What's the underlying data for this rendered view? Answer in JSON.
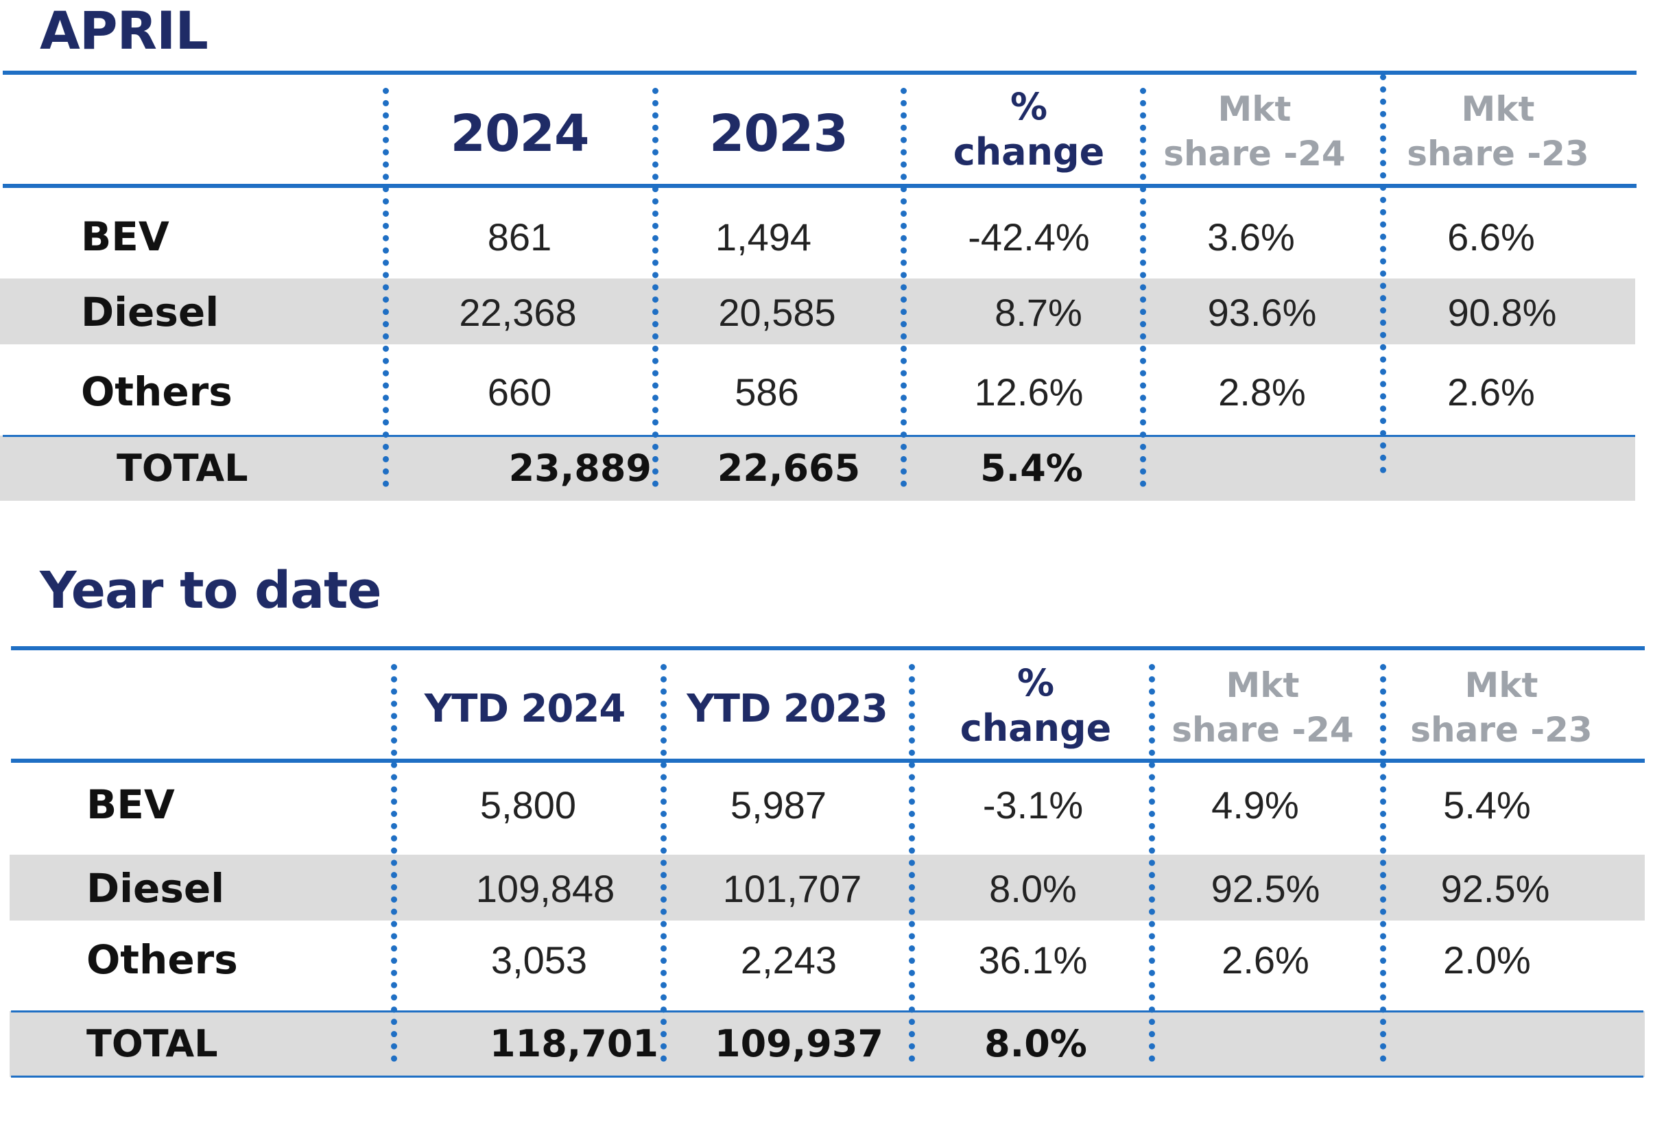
{
  "sections": [
    {
      "title": "APRIL",
      "columns": [
        "2024",
        "2023",
        "%\nchange",
        "Mkt\nshare -24",
        "Mkt\nshare -23"
      ],
      "rows": [
        {
          "label": "BEV",
          "values": [
            "861",
            "1,494",
            "-42.4%",
            "3.6%",
            "6.6%"
          ]
        },
        {
          "label": "Diesel",
          "values": [
            "22,368",
            "20,585",
            "8.7%",
            "93.6%",
            "90.8%"
          ]
        },
        {
          "label": "Others",
          "values": [
            "660",
            "586",
            "12.6%",
            "2.8%",
            "2.6%"
          ]
        }
      ],
      "total": {
        "label": "TOTAL",
        "values": [
          "23,889",
          "22,665",
          "5.4%",
          "",
          ""
        ]
      }
    },
    {
      "title": "Year to date",
      "columns": [
        "YTD 2024",
        "YTD 2023",
        "%\nchange",
        "Mkt\nshare -24",
        "Mkt\nshare -23"
      ],
      "rows": [
        {
          "label": "BEV",
          "values": [
            "5,800",
            "5,987",
            "-3.1%",
            "4.9%",
            "5.4%"
          ]
        },
        {
          "label": "Diesel",
          "values": [
            "109,848",
            "101,707",
            "8.0%",
            "92.5%",
            "92.5%"
          ]
        },
        {
          "label": "Others",
          "values": [
            "3,053",
            "2,243",
            "36.1%",
            "2.6%",
            "2.0%"
          ]
        }
      ],
      "total": {
        "label": "TOTAL",
        "values": [
          "118,701",
          "109,937",
          "8.0%",
          "",
          ""
        ]
      }
    }
  ],
  "colors": {
    "title": "#1f2b66",
    "rule": "#1f6fc4",
    "band": "#dcdcdc",
    "muted_header": "#9ea3aa"
  }
}
